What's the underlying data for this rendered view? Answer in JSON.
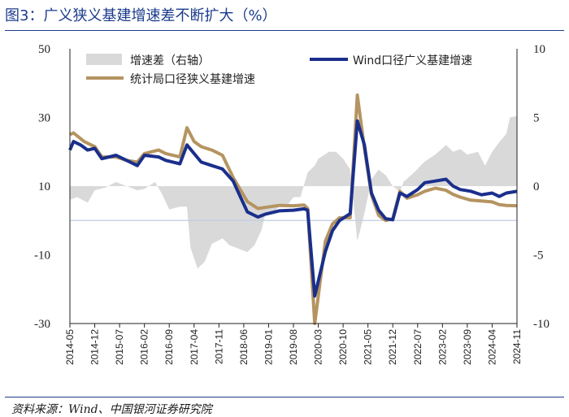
{
  "title": "图3：广义狭义基建增速差不断扩大（%）",
  "source": "资料来源：Wind、中国银河证券研究院",
  "chart_data": {
    "type": "line",
    "x_start": "2014-05",
    "x_end": "2024-11",
    "x_tick_labels": [
      "2014-05",
      "2014-12",
      "2015-07",
      "2016-02",
      "2016-09",
      "2017-04",
      "2017-11",
      "2018-06",
      "2019-01",
      "2019-08",
      "2020-03",
      "2020-10",
      "2021-05",
      "2021-12",
      "2022-07",
      "2023-02",
      "2023-09",
      "2024-04",
      "2024-11"
    ],
    "y_left": {
      "ticks": [
        50,
        30,
        10,
        -10,
        -30
      ],
      "ylim": [
        -30,
        50
      ]
    },
    "y_right": {
      "ticks": [
        10,
        5,
        0,
        -5,
        -10
      ],
      "ylim": [
        -10,
        10
      ]
    },
    "legend": [
      "增速差（右轴）",
      "Wind口径广义基建增速",
      "统计局口径狭义基建增速"
    ],
    "colors": {
      "diff": "#d9d9d9",
      "wind": "#1a2f8c",
      "stat": "#b59461",
      "zero": "#bfcde3"
    },
    "series": [
      {
        "name": "Wind口径广义基建增速",
        "axis": "left",
        "points": [
          [
            "2014-05",
            20.5
          ],
          [
            "2014-06",
            23
          ],
          [
            "2014-08",
            22
          ],
          [
            "2014-10",
            20.5
          ],
          [
            "2014-12",
            21
          ],
          [
            "2015-02",
            18
          ],
          [
            "2015-06",
            19
          ],
          [
            "2015-09",
            17.5
          ],
          [
            "2015-12",
            16
          ],
          [
            "2016-02",
            19
          ],
          [
            "2016-06",
            18.5
          ],
          [
            "2016-08",
            17.5
          ],
          [
            "2016-12",
            16.5
          ],
          [
            "2017-02",
            22
          ],
          [
            "2017-06",
            17
          ],
          [
            "2017-09",
            16
          ],
          [
            "2017-12",
            15
          ],
          [
            "2018-03",
            11.5
          ],
          [
            "2018-05",
            7
          ],
          [
            "2018-07",
            2.5
          ],
          [
            "2018-10",
            1
          ],
          [
            "2018-12",
            1.8
          ],
          [
            "2019-04",
            2.8
          ],
          [
            "2019-08",
            3
          ],
          [
            "2019-11",
            3.4
          ],
          [
            "2019-12",
            3
          ],
          [
            "2020-02",
            -22
          ],
          [
            "2020-05",
            -9
          ],
          [
            "2020-07",
            -3
          ],
          [
            "2020-09",
            0
          ],
          [
            "2020-12",
            2
          ],
          [
            "2021-02",
            29
          ],
          [
            "2021-04",
            22
          ],
          [
            "2021-06",
            8
          ],
          [
            "2021-08",
            3
          ],
          [
            "2021-10",
            0.5
          ],
          [
            "2021-12",
            0.2
          ],
          [
            "2022-02",
            8
          ],
          [
            "2022-04",
            7
          ],
          [
            "2022-07",
            9
          ],
          [
            "2022-09",
            11
          ],
          [
            "2022-12",
            11.5
          ],
          [
            "2023-03",
            12
          ],
          [
            "2023-05",
            10
          ],
          [
            "2023-07",
            9
          ],
          [
            "2023-10",
            8.5
          ],
          [
            "2024-01",
            7.5
          ],
          [
            "2024-04",
            8
          ],
          [
            "2024-06",
            7
          ],
          [
            "2024-08",
            8
          ],
          [
            "2024-11",
            8.5
          ]
        ]
      },
      {
        "name": "统计局口径狭义基建增速",
        "axis": "left",
        "points": [
          [
            "2014-05",
            25
          ],
          [
            "2014-06",
            25.5
          ],
          [
            "2014-09",
            23
          ],
          [
            "2014-12",
            21.5
          ],
          [
            "2015-02",
            18.5
          ],
          [
            "2015-06",
            18.5
          ],
          [
            "2015-09",
            17.5
          ],
          [
            "2015-12",
            17
          ],
          [
            "2016-02",
            19.5
          ],
          [
            "2016-06",
            20.5
          ],
          [
            "2016-08",
            19.5
          ],
          [
            "2016-12",
            18.5
          ],
          [
            "2017-02",
            27
          ],
          [
            "2017-04",
            23
          ],
          [
            "2017-06",
            21.5
          ],
          [
            "2017-09",
            20.5
          ],
          [
            "2017-12",
            19
          ],
          [
            "2018-03",
            12.5
          ],
          [
            "2018-05",
            9
          ],
          [
            "2018-07",
            5.5
          ],
          [
            "2018-10",
            3.5
          ],
          [
            "2018-12",
            3.8
          ],
          [
            "2019-04",
            4.4
          ],
          [
            "2019-08",
            4.3
          ],
          [
            "2019-11",
            4.5
          ],
          [
            "2019-12",
            3.5
          ],
          [
            "2020-02",
            -30
          ],
          [
            "2020-05",
            -6
          ],
          [
            "2020-07",
            -1
          ],
          [
            "2020-09",
            0.8
          ],
          [
            "2020-12",
            0.8
          ],
          [
            "2021-02",
            36.5
          ],
          [
            "2021-04",
            21
          ],
          [
            "2021-06",
            7.5
          ],
          [
            "2021-08",
            1.5
          ],
          [
            "2021-10",
            0
          ],
          [
            "2021-12",
            0.5
          ],
          [
            "2022-02",
            8.5
          ],
          [
            "2022-04",
            6.5
          ],
          [
            "2022-07",
            7.5
          ],
          [
            "2022-09",
            8.5
          ],
          [
            "2022-12",
            9.4
          ],
          [
            "2023-03",
            8.8
          ],
          [
            "2023-05",
            7.6
          ],
          [
            "2023-07",
            6.8
          ],
          [
            "2023-10",
            5.9
          ],
          [
            "2024-01",
            5.7
          ],
          [
            "2024-04",
            5.4
          ],
          [
            "2024-06",
            4.6
          ],
          [
            "2024-08",
            4.4
          ],
          [
            "2024-11",
            4.3
          ]
        ]
      },
      {
        "name": "增速差（右轴）",
        "axis": "right",
        "points": [
          [
            "2014-05",
            -1
          ],
          [
            "2014-07",
            -0.8
          ],
          [
            "2014-10",
            -1.2
          ],
          [
            "2014-12",
            -0.3
          ],
          [
            "2015-03",
            -0.1
          ],
          [
            "2015-06",
            0.3
          ],
          [
            "2015-09",
            0
          ],
          [
            "2015-12",
            -0.3
          ],
          [
            "2016-02",
            -0.2
          ],
          [
            "2016-05",
            0.3
          ],
          [
            "2016-07",
            -0.6
          ],
          [
            "2016-09",
            -1.7
          ],
          [
            "2016-12",
            -1.5
          ],
          [
            "2017-02",
            -1.5
          ],
          [
            "2017-03",
            -4.5
          ],
          [
            "2017-05",
            -6
          ],
          [
            "2017-07",
            -5.5
          ],
          [
            "2017-09",
            -4.2
          ],
          [
            "2017-12",
            -3.8
          ],
          [
            "2018-02",
            -4.3
          ],
          [
            "2018-04",
            -4.5
          ],
          [
            "2018-07",
            -4.8
          ],
          [
            "2018-09",
            -4.3
          ],
          [
            "2018-11",
            -3.2
          ],
          [
            "2018-12",
            -2.1
          ],
          [
            "2019-02",
            -2
          ],
          [
            "2019-04",
            -1.5
          ],
          [
            "2019-06",
            -1.5
          ],
          [
            "2019-08",
            -0.8
          ],
          [
            "2019-10",
            -0.8
          ],
          [
            "2019-12",
            1
          ],
          [
            "2020-02",
            1.5
          ],
          [
            "2020-03",
            2
          ],
          [
            "2020-06",
            2.5
          ],
          [
            "2020-08",
            2.5
          ],
          [
            "2020-10",
            2
          ],
          [
            "2020-12",
            1.2
          ],
          [
            "2021-02",
            -4
          ],
          [
            "2021-04",
            -2
          ],
          [
            "2021-06",
            0.5
          ],
          [
            "2021-08",
            1.2
          ],
          [
            "2021-10",
            0.8
          ],
          [
            "2021-12",
            0
          ],
          [
            "2022-02",
            -0.4
          ],
          [
            "2022-03",
            0.3
          ],
          [
            "2022-06",
            1
          ],
          [
            "2022-09",
            1.8
          ],
          [
            "2022-12",
            2.3
          ],
          [
            "2023-03",
            3
          ],
          [
            "2023-05",
            2.5
          ],
          [
            "2023-07",
            2.7
          ],
          [
            "2023-09",
            2.3
          ],
          [
            "2023-12",
            2.5
          ],
          [
            "2024-02",
            1.5
          ],
          [
            "2024-04",
            2.5
          ],
          [
            "2024-06",
            3.2
          ],
          [
            "2024-08",
            3.8
          ],
          [
            "2024-09",
            5
          ],
          [
            "2024-11",
            5.1
          ]
        ]
      }
    ]
  }
}
